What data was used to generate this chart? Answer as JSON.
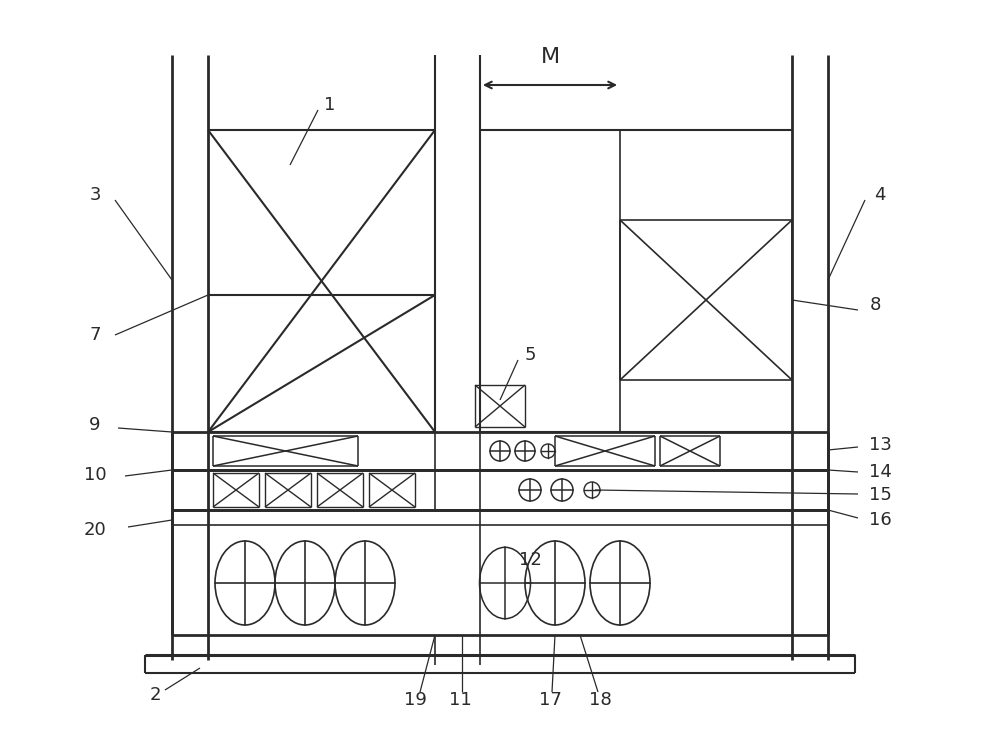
{
  "fig_width": 10.0,
  "fig_height": 7.55,
  "dpi": 100,
  "line_color": "#2a2a2a",
  "bg_color": "#ffffff"
}
